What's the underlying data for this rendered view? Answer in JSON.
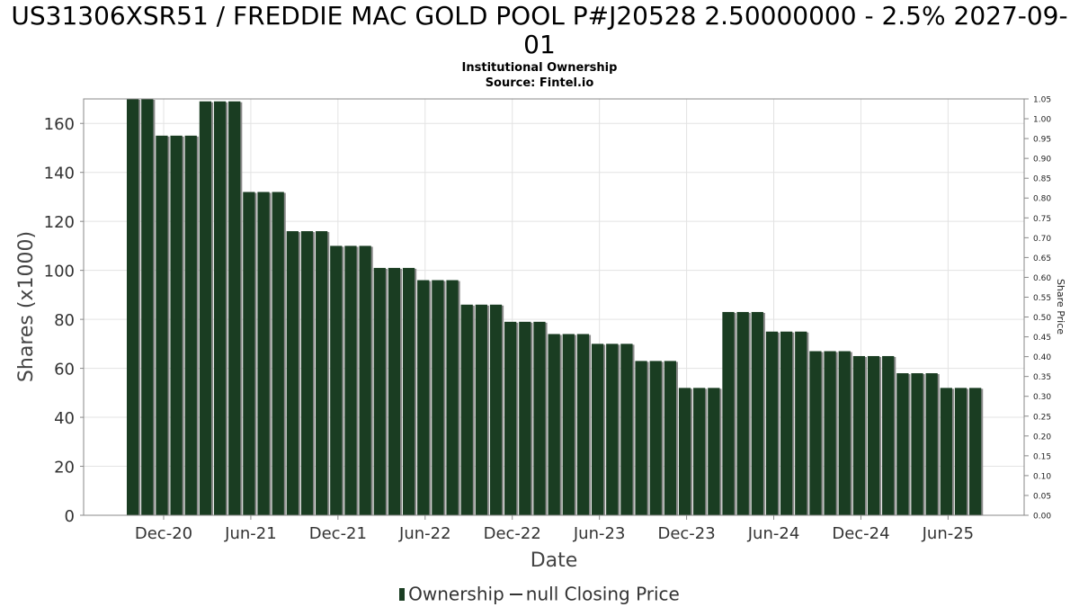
{
  "chart_data": {
    "type": "bar",
    "title_line1": "US31306XSR51 / FREDDIE MAC GOLD POOL P#J20528 2.50000000 - 2.5% 2027-09-",
    "title_line2": "01",
    "subtitle_line1": "Institutional Ownership",
    "subtitle_line2": "Source: Fintel.io",
    "xlabel": "Date",
    "ylabel": "Shares (x1000)",
    "y2label": "Share Price",
    "ylim": [
      0,
      170
    ],
    "y2lim": [
      0,
      1.05
    ],
    "yticks": [
      "0",
      "20",
      "40",
      "60",
      "80",
      "100",
      "120",
      "140",
      "160"
    ],
    "y2ticks": [
      "0.00",
      "0.05",
      "0.10",
      "0.15",
      "0.20",
      "0.25",
      "0.30",
      "0.35",
      "0.40",
      "0.45",
      "0.50",
      "0.55",
      "0.60",
      "0.65",
      "0.70",
      "0.75",
      "0.80",
      "0.85",
      "0.90",
      "0.95",
      "1.00",
      "1.05"
    ],
    "xtick_labels": [
      "Dec-20",
      "Jun-21",
      "Dec-21",
      "Jun-22",
      "Dec-22",
      "Jun-23",
      "Dec-23",
      "Jun-24",
      "Dec-24",
      "Jun-25"
    ],
    "grid": true,
    "legend_position": "bottom",
    "series": [
      {
        "name": "Ownership",
        "color": "#1a3d22",
        "values": [
          170,
          170,
          155,
          155,
          155,
          169,
          169,
          169,
          132,
          132,
          132,
          116,
          116,
          116,
          110,
          110,
          110,
          101,
          101,
          101,
          96,
          96,
          96,
          86,
          86,
          86,
          79,
          79,
          79,
          74,
          74,
          74,
          70,
          70,
          70,
          63,
          63,
          63,
          52,
          52,
          52,
          83,
          83,
          83,
          75,
          75,
          75,
          67,
          67,
          67,
          65,
          65,
          65,
          58,
          58,
          58,
          52,
          52,
          52
        ]
      }
    ],
    "legend": {
      "ownership_label": "Ownership",
      "price_label": "null Closing Price"
    }
  }
}
